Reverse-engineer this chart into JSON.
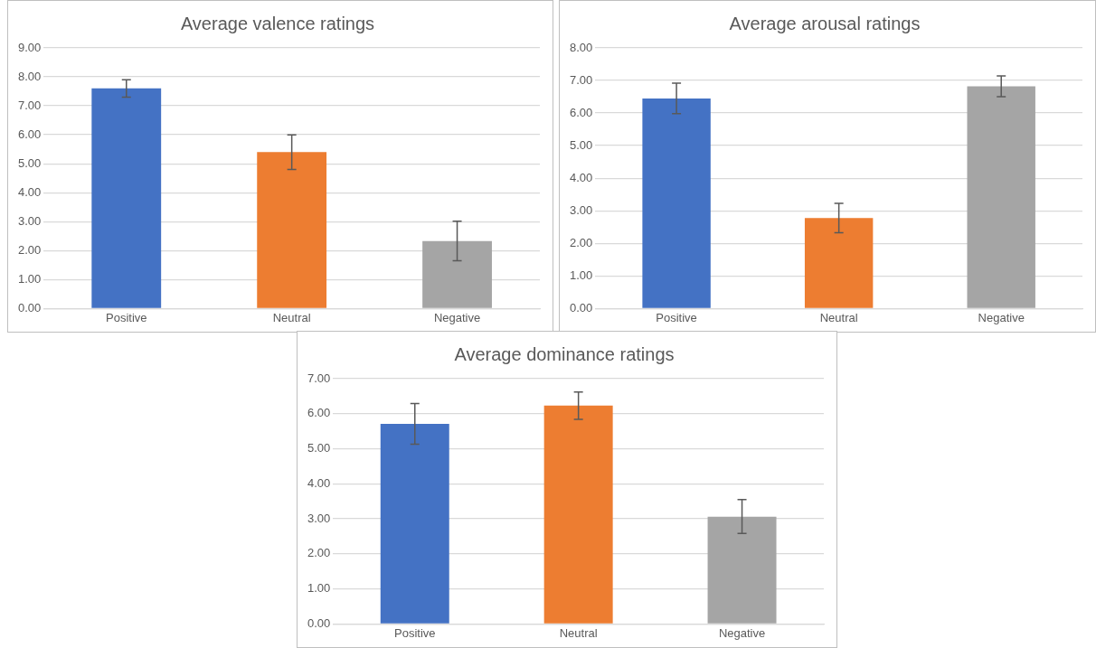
{
  "chart_data": [
    {
      "type": "bar",
      "title": "Average valence ratings",
      "categories": [
        "Positive",
        "Neutral",
        "Negative"
      ],
      "values": [
        7.6,
        5.4,
        2.33
      ],
      "colors": [
        "#4472c4",
        "#ed7d31",
        "#a5a5a5"
      ],
      "errors": [
        [
          7.3,
          7.9
        ],
        [
          4.8,
          6.0
        ],
        [
          1.65,
          3.02
        ]
      ],
      "ylim": [
        0,
        9
      ],
      "yticks": [
        {
          "value": 0,
          "label": "0.00"
        },
        {
          "value": 1,
          "label": "1.00"
        },
        {
          "value": 2,
          "label": "2.00"
        },
        {
          "value": 3,
          "label": "3.00"
        },
        {
          "value": 4,
          "label": "4.00"
        },
        {
          "value": 5,
          "label": "5.00"
        },
        {
          "value": 6,
          "label": "6.00"
        },
        {
          "value": 7,
          "label": "7.00"
        },
        {
          "value": 8,
          "label": "8.00"
        },
        {
          "value": 9,
          "label": "9.00"
        }
      ],
      "grid": "y",
      "legend": false
    },
    {
      "type": "bar",
      "title": "Average arousal ratings",
      "categories": [
        "Positive",
        "Neutral",
        "Negative"
      ],
      "values": [
        6.45,
        2.78,
        6.82
      ],
      "colors": [
        "#4472c4",
        "#ed7d31",
        "#a5a5a5"
      ],
      "errors": [
        [
          5.98,
          6.92
        ],
        [
          2.33,
          3.23
        ],
        [
          6.5,
          7.14
        ]
      ],
      "ylim": [
        0,
        8
      ],
      "yticks": [
        {
          "value": 0,
          "label": "0.00"
        },
        {
          "value": 1,
          "label": "1.00"
        },
        {
          "value": 2,
          "label": "2.00"
        },
        {
          "value": 3,
          "label": "3.00"
        },
        {
          "value": 4,
          "label": "4.00"
        },
        {
          "value": 5,
          "label": "5.00"
        },
        {
          "value": 6,
          "label": "6.00"
        },
        {
          "value": 7,
          "label": "7.00"
        },
        {
          "value": 8,
          "label": "8.00"
        }
      ],
      "grid": "y",
      "legend": false
    },
    {
      "type": "bar",
      "title": "Average dominance ratings",
      "categories": [
        "Positive",
        "Neutral",
        "Negative"
      ],
      "values": [
        5.71,
        6.23,
        3.06
      ],
      "colors": [
        "#4472c4",
        "#ed7d31",
        "#a5a5a5"
      ],
      "errors": [
        [
          5.13,
          6.29
        ],
        [
          5.84,
          6.62
        ],
        [
          2.58,
          3.55
        ]
      ],
      "ylim": [
        0,
        7
      ],
      "yticks": [
        {
          "value": 0,
          "label": "0.00"
        },
        {
          "value": 1,
          "label": "1.00"
        },
        {
          "value": 2,
          "label": "2.00"
        },
        {
          "value": 3,
          "label": "3.00"
        },
        {
          "value": 4,
          "label": "4.00"
        },
        {
          "value": 5,
          "label": "5.00"
        },
        {
          "value": 6,
          "label": "6.00"
        },
        {
          "value": 7,
          "label": "7.00"
        }
      ],
      "grid": "y",
      "legend": false
    }
  ]
}
